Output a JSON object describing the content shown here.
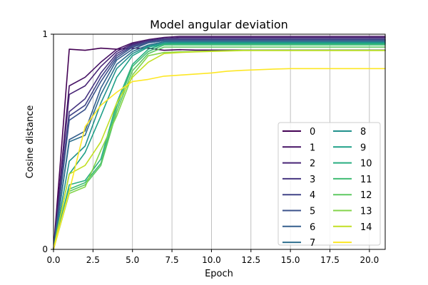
{
  "chart_data": {
    "type": "line",
    "title": "Model angular deviation",
    "xlabel": "Epoch",
    "ylabel": "Cosine distance",
    "xlim": [
      0,
      21
    ],
    "ylim": [
      0,
      1
    ],
    "xticks": [
      "0.0",
      "2.5",
      "5.0",
      "7.5",
      "10.0",
      "12.5",
      "15.0",
      "17.5",
      "20.0"
    ],
    "yticks": [
      "0",
      "1"
    ],
    "grid": "vertical",
    "legend_position": "lower-right",
    "legend_columns": 2,
    "x": [
      0,
      1,
      2,
      3,
      4,
      5,
      6,
      7,
      8,
      9,
      10,
      11,
      12,
      13,
      14,
      15,
      16,
      17,
      18,
      19,
      20,
      21
    ],
    "series": [
      {
        "name": "0",
        "color": "#440154",
        "values": [
          0,
          0.93,
          0.925,
          0.935,
          0.93,
          0.935,
          0.935,
          0.925,
          0.928,
          0.926,
          0.926,
          0.926,
          0.926,
          0.926,
          0.926,
          0.926,
          0.926,
          0.926,
          0.926,
          0.926,
          0.926,
          0.926
        ]
      },
      {
        "name": "1",
        "color": "#471365",
        "values": [
          0,
          0.76,
          0.8,
          0.87,
          0.93,
          0.96,
          0.975,
          0.985,
          0.99,
          0.99,
          0.99,
          0.99,
          0.99,
          0.99,
          0.99,
          0.99,
          0.99,
          0.99,
          0.99,
          0.99,
          0.99,
          0.99
        ]
      },
      {
        "name": "2",
        "color": "#482475",
        "values": [
          0,
          0.72,
          0.76,
          0.85,
          0.92,
          0.955,
          0.97,
          0.98,
          0.985,
          0.985,
          0.985,
          0.985,
          0.985,
          0.985,
          0.985,
          0.985,
          0.985,
          0.985,
          0.985,
          0.985,
          0.985,
          0.985
        ]
      },
      {
        "name": "3",
        "color": "#463480",
        "values": [
          0,
          0.64,
          0.7,
          0.82,
          0.91,
          0.95,
          0.97,
          0.98,
          0.98,
          0.98,
          0.98,
          0.98,
          0.98,
          0.98,
          0.98,
          0.98,
          0.98,
          0.98,
          0.98,
          0.98,
          0.98,
          0.98
        ]
      },
      {
        "name": "4",
        "color": "#414487",
        "values": [
          0,
          0.62,
          0.67,
          0.8,
          0.9,
          0.945,
          0.965,
          0.975,
          0.975,
          0.975,
          0.975,
          0.975,
          0.975,
          0.975,
          0.975,
          0.975,
          0.975,
          0.975,
          0.975,
          0.975,
          0.975,
          0.975
        ]
      },
      {
        "name": "5",
        "color": "#3b528b",
        "values": [
          0,
          0.6,
          0.65,
          0.78,
          0.89,
          0.94,
          0.96,
          0.97,
          0.972,
          0.972,
          0.972,
          0.972,
          0.972,
          0.972,
          0.972,
          0.972,
          0.972,
          0.972,
          0.972,
          0.972,
          0.972,
          0.972
        ]
      },
      {
        "name": "6",
        "color": "#355f8d",
        "values": [
          0,
          0.51,
          0.55,
          0.75,
          0.88,
          0.93,
          0.96,
          0.97,
          0.97,
          0.97,
          0.97,
          0.97,
          0.97,
          0.97,
          0.97,
          0.97,
          0.97,
          0.97,
          0.97,
          0.97,
          0.97,
          0.97
        ]
      },
      {
        "name": "7",
        "color": "#2e6f8e",
        "values": [
          0,
          0.5,
          0.53,
          0.72,
          0.86,
          0.92,
          0.95,
          0.965,
          0.965,
          0.965,
          0.965,
          0.965,
          0.965,
          0.965,
          0.965,
          0.965,
          0.965,
          0.965,
          0.965,
          0.965,
          0.965,
          0.965
        ]
      },
      {
        "name": "8",
        "color": "#21918c",
        "values": [
          0,
          0.41,
          0.48,
          0.68,
          0.84,
          0.91,
          0.945,
          0.96,
          0.962,
          0.962,
          0.962,
          0.962,
          0.962,
          0.962,
          0.962,
          0.962,
          0.962,
          0.962,
          0.962,
          0.962,
          0.962,
          0.962
        ]
      },
      {
        "name": "9",
        "color": "#1fa088",
        "values": [
          0,
          0.35,
          0.45,
          0.62,
          0.8,
          0.9,
          0.94,
          0.955,
          0.958,
          0.958,
          0.958,
          0.958,
          0.958,
          0.958,
          0.958,
          0.958,
          0.958,
          0.958,
          0.958,
          0.958,
          0.958,
          0.958
        ]
      },
      {
        "name": "10",
        "color": "#28ae80",
        "values": [
          0,
          0.3,
          0.32,
          0.42,
          0.68,
          0.86,
          0.93,
          0.955,
          0.955,
          0.955,
          0.955,
          0.955,
          0.955,
          0.955,
          0.955,
          0.955,
          0.955,
          0.955,
          0.955,
          0.955,
          0.955,
          0.955
        ]
      },
      {
        "name": "11",
        "color": "#3fbc73",
        "values": [
          0,
          0.28,
          0.31,
          0.4,
          0.66,
          0.85,
          0.92,
          0.95,
          0.95,
          0.95,
          0.95,
          0.95,
          0.95,
          0.95,
          0.95,
          0.95,
          0.95,
          0.95,
          0.95,
          0.95,
          0.95,
          0.95
        ]
      },
      {
        "name": "12",
        "color": "#5ec962",
        "values": [
          0,
          0.27,
          0.3,
          0.39,
          0.64,
          0.83,
          0.91,
          0.94,
          0.94,
          0.94,
          0.94,
          0.94,
          0.94,
          0.94,
          0.94,
          0.94,
          0.94,
          0.94,
          0.94,
          0.94,
          0.94,
          0.94
        ]
      },
      {
        "name": "13",
        "color": "#84d44b",
        "values": [
          0,
          0.26,
          0.29,
          0.46,
          0.62,
          0.81,
          0.9,
          0.915,
          0.918,
          0.92,
          0.922,
          0.924,
          0.925,
          0.925,
          0.925,
          0.925,
          0.925,
          0.925,
          0.925,
          0.925,
          0.925,
          0.925
        ]
      },
      {
        "name": "14",
        "color": "#c2df23",
        "values": [
          0,
          0.35,
          0.39,
          0.5,
          0.68,
          0.8,
          0.87,
          0.91,
          0.915,
          0.918,
          0.92,
          0.922,
          0.924,
          0.924,
          0.924,
          0.924,
          0.924,
          0.924,
          0.924,
          0.924,
          0.924,
          0.924
        ]
      },
      {
        "name": "",
        "color": "#fde725",
        "values": [
          0,
          0.27,
          0.57,
          0.67,
          0.73,
          0.78,
          0.79,
          0.805,
          0.81,
          0.815,
          0.82,
          0.828,
          0.832,
          0.835,
          0.838,
          0.84,
          0.84,
          0.84,
          0.84,
          0.84,
          0.84,
          0.84
        ]
      }
    ]
  }
}
